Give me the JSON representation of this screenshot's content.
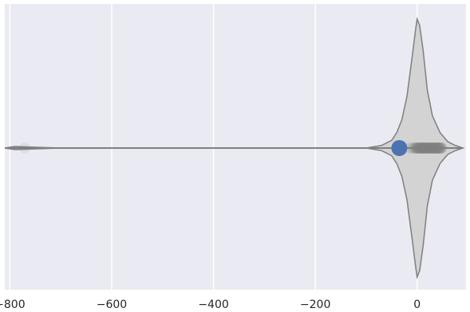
{
  "chart_data": {
    "type": "violin",
    "orientation": "horizontal",
    "title": "",
    "xlabel": "",
    "ylabel": "",
    "xlim": [
      -810,
      96
    ],
    "grid": true,
    "xticks": [
      {
        "value": -800,
        "label": "−800"
      },
      {
        "value": -600,
        "label": "−600"
      },
      {
        "value": -400,
        "label": "−400"
      },
      {
        "value": -200,
        "label": "−200"
      },
      {
        "value": 0,
        "label": "0"
      }
    ],
    "violin": {
      "min": -810,
      "max": 90,
      "density_profile": [
        [
          -810,
          0.0
        ],
        [
          -790,
          0.012
        ],
        [
          -760,
          0.008
        ],
        [
          -700,
          0.0
        ],
        [
          -100,
          0.0
        ],
        [
          -70,
          0.02
        ],
        [
          -50,
          0.06
        ],
        [
          -40,
          0.12
        ],
        [
          -30,
          0.22
        ],
        [
          -20,
          0.4
        ],
        [
          -10,
          0.7
        ],
        [
          -3,
          0.92
        ],
        [
          0,
          1.0
        ],
        [
          5,
          0.95
        ],
        [
          12,
          0.75
        ],
        [
          20,
          0.45
        ],
        [
          30,
          0.25
        ],
        [
          45,
          0.12
        ],
        [
          60,
          0.05
        ],
        [
          75,
          0.02
        ],
        [
          90,
          0.0
        ]
      ],
      "fill_color": "#d3d3d3",
      "edge_color": "#7f7f7f"
    },
    "points": {
      "color": "#808080",
      "values": [
        -771,
        -14,
        -8,
        -5,
        -3,
        -1,
        0,
        1,
        2,
        3,
        4,
        5,
        6,
        7,
        8,
        9,
        10,
        11,
        12,
        13,
        14,
        15,
        16,
        17,
        18,
        19,
        20,
        21,
        22,
        23,
        24,
        25,
        26,
        27,
        28,
        29,
        30,
        31,
        32,
        33,
        34,
        35,
        36,
        37,
        38,
        39,
        40,
        41,
        42,
        43,
        44,
        45,
        46,
        47,
        48
      ]
    },
    "highlight": {
      "value": -35,
      "color": "#4c72b0"
    }
  },
  "colors": {
    "background": "#eaeaf2",
    "gridline": "#ffffff"
  }
}
